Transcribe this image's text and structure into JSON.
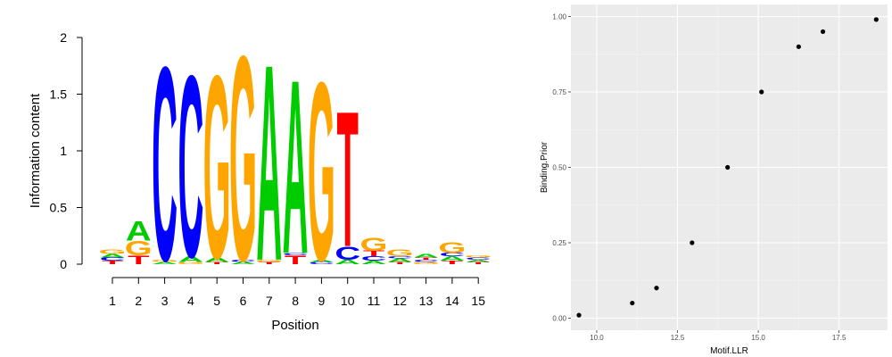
{
  "chart_data": [
    {
      "type": "sequence-logo",
      "xlabel": "Position",
      "ylabel": "Information content",
      "ylim": [
        0,
        2
      ],
      "yticks": [
        "0",
        "0.5",
        "1",
        "1.5",
        "2"
      ],
      "positions": [
        "1",
        "2",
        "3",
        "4",
        "5",
        "6",
        "7",
        "8",
        "9",
        "10",
        "11",
        "12",
        "13",
        "14",
        "15"
      ],
      "colors": {
        "A": "#00cc00",
        "C": "#0000ff",
        "G": "#ffa500",
        "T": "#ff0000"
      },
      "columns": [
        [
          {
            "letter": "T",
            "height": 0.03
          },
          {
            "letter": "C",
            "height": 0.03
          },
          {
            "letter": "A",
            "height": 0.03
          },
          {
            "letter": "G",
            "height": 0.04
          }
        ],
        [
          {
            "letter": "T",
            "height": 0.08
          },
          {
            "letter": "G",
            "height": 0.13
          },
          {
            "letter": "A",
            "height": 0.18
          }
        ],
        [
          {
            "letter": "A",
            "height": 0.02
          },
          {
            "letter": "G",
            "height": 0.02
          },
          {
            "letter": "C",
            "height": 1.76
          }
        ],
        [
          {
            "letter": "G",
            "height": 0.02
          },
          {
            "letter": "A",
            "height": 0.05
          },
          {
            "letter": "C",
            "height": 1.65
          }
        ],
        [
          {
            "letter": "T",
            "height": 0.02
          },
          {
            "letter": "A",
            "height": 0.04
          },
          {
            "letter": "G",
            "height": 1.66
          }
        ],
        [
          {
            "letter": "A",
            "height": 0.02
          },
          {
            "letter": "C",
            "height": 0.02
          },
          {
            "letter": "G",
            "height": 1.86
          }
        ],
        [
          {
            "letter": "T",
            "height": 0.02
          },
          {
            "letter": "G",
            "height": 0.02
          },
          {
            "letter": "A",
            "height": 1.78
          }
        ],
        [
          {
            "letter": "T",
            "height": 0.08
          },
          {
            "letter": "C",
            "height": 0.02
          },
          {
            "letter": "A",
            "height": 1.58
          }
        ],
        [
          {
            "letter": "C",
            "height": 0.02
          },
          {
            "letter": "A",
            "height": 0.02
          },
          {
            "letter": "G",
            "height": 1.62
          }
        ],
        [
          {
            "letter": "A",
            "height": 0.04
          },
          {
            "letter": "C",
            "height": 0.12
          },
          {
            "letter": "T",
            "height": 1.23
          }
        ],
        [
          {
            "letter": "A",
            "height": 0.03
          },
          {
            "letter": "C",
            "height": 0.04
          },
          {
            "letter": "T",
            "height": 0.05
          },
          {
            "letter": "G",
            "height": 0.12
          }
        ],
        [
          {
            "letter": "T",
            "height": 0.02
          },
          {
            "letter": "A",
            "height": 0.03
          },
          {
            "letter": "C",
            "height": 0.02
          },
          {
            "letter": "G",
            "height": 0.06
          }
        ],
        [
          {
            "letter": "G",
            "height": 0.02
          },
          {
            "letter": "C",
            "height": 0.02
          },
          {
            "letter": "T",
            "height": 0.02
          },
          {
            "letter": "A",
            "height": 0.03
          }
        ],
        [
          {
            "letter": "T",
            "height": 0.03
          },
          {
            "letter": "A",
            "height": 0.04
          },
          {
            "letter": "C",
            "height": 0.03
          },
          {
            "letter": "G",
            "height": 0.1
          }
        ],
        [
          {
            "letter": "T",
            "height": 0.02
          },
          {
            "letter": "A",
            "height": 0.02
          },
          {
            "letter": "C",
            "height": 0.02
          },
          {
            "letter": "G",
            "height": 0.02
          }
        ]
      ]
    },
    {
      "type": "scatter",
      "xlabel": "Motif.LLR",
      "ylabel": "Binding.Prior",
      "xlim": [
        9.2,
        19.0
      ],
      "ylim": [
        -0.04,
        1.04
      ],
      "xticks": [
        10.0,
        12.5,
        15.0,
        17.5
      ],
      "xtick_labels": [
        "10.0",
        "12.5",
        "15.0",
        "17.5"
      ],
      "yticks": [
        0.0,
        0.25,
        0.5,
        0.75,
        1.0
      ],
      "ytick_labels": [
        "0.00",
        "0.25",
        "0.50",
        "0.75",
        "1.00"
      ],
      "grid": true,
      "panel_background": "#ebebeb",
      "point_color": "#000000",
      "points": [
        {
          "x": 9.45,
          "y": 0.01
        },
        {
          "x": 11.1,
          "y": 0.05
        },
        {
          "x": 11.85,
          "y": 0.1
        },
        {
          "x": 12.95,
          "y": 0.25
        },
        {
          "x": 14.05,
          "y": 0.5
        },
        {
          "x": 15.1,
          "y": 0.75
        },
        {
          "x": 16.25,
          "y": 0.9
        },
        {
          "x": 17.0,
          "y": 0.95
        },
        {
          "x": 18.65,
          "y": 0.99
        }
      ]
    }
  ]
}
